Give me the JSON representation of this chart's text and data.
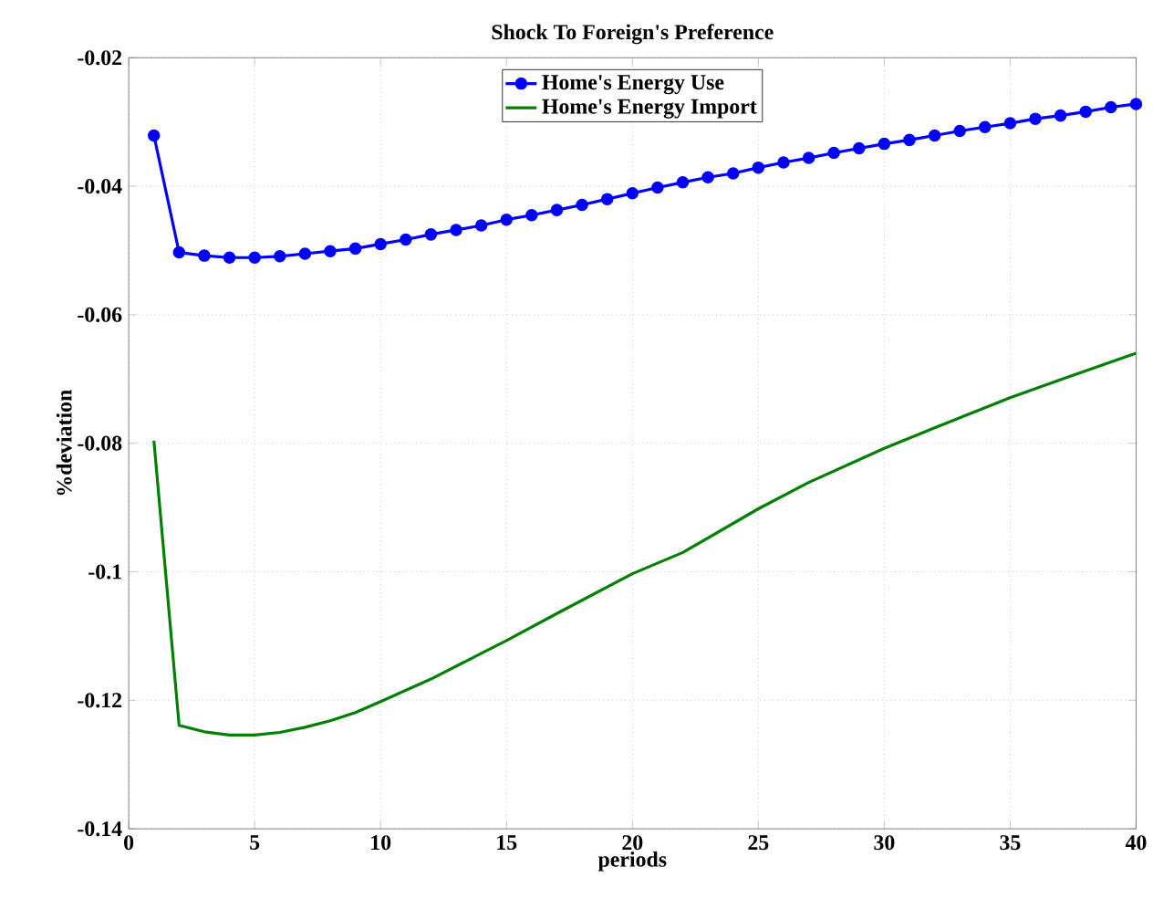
{
  "chart_data": {
    "type": "line",
    "title": "Shock To Foreign's Preference",
    "xlabel": "periods",
    "ylabel": "%deviation",
    "xlim": [
      0,
      40
    ],
    "ylim": [
      -0.14,
      -0.02
    ],
    "xticks": [
      0,
      5,
      10,
      15,
      20,
      25,
      30,
      35,
      40
    ],
    "yticks": [
      -0.14,
      -0.12,
      -0.1,
      -0.08,
      -0.06,
      -0.04,
      -0.02
    ],
    "grid": true,
    "legend": "top",
    "series": [
      {
        "name": "Home's Energy Use",
        "color": "#0000ff",
        "marker": "circle",
        "x": [
          1,
          2,
          3,
          4,
          5,
          6,
          7,
          8,
          9,
          10,
          11,
          12,
          13,
          14,
          15,
          16,
          17,
          18,
          19,
          20,
          21,
          22,
          23,
          24,
          25,
          26,
          27,
          28,
          29,
          30,
          31,
          32,
          33,
          34,
          35,
          36,
          37,
          38,
          39,
          40
        ],
        "values": [
          -0.0321,
          -0.0503,
          -0.0508,
          -0.0511,
          -0.0511,
          -0.0509,
          -0.0505,
          -0.0501,
          -0.0497,
          -0.049,
          -0.0483,
          -0.0475,
          -0.0468,
          -0.0461,
          -0.0452,
          -0.0445,
          -0.0437,
          -0.0429,
          -0.042,
          -0.0411,
          -0.0402,
          -0.0394,
          -0.0386,
          -0.038,
          -0.0371,
          -0.0363,
          -0.0356,
          -0.0348,
          -0.0341,
          -0.0334,
          -0.0328,
          -0.0321,
          -0.0314,
          -0.0308,
          -0.0302,
          -0.0295,
          -0.029,
          -0.0284,
          -0.0277,
          -0.0272
        ]
      },
      {
        "name": "Home's Energy Import",
        "color": "#008000",
        "marker": "none",
        "x": [
          1,
          2,
          3,
          4,
          5,
          6,
          7,
          8,
          9,
          10,
          12,
          14,
          15,
          17,
          20,
          22,
          25,
          27,
          30,
          32,
          35,
          37,
          40
        ],
        "values": [
          -0.0796,
          -0.1239,
          -0.1249,
          -0.1254,
          -0.1254,
          -0.125,
          -0.1242,
          -0.1232,
          -0.1219,
          -0.1202,
          -0.1167,
          -0.1127,
          -0.1107,
          -0.1065,
          -0.1003,
          -0.097,
          -0.0902,
          -0.0861,
          -0.0808,
          -0.0776,
          -0.0729,
          -0.0701,
          -0.066
        ]
      }
    ]
  }
}
